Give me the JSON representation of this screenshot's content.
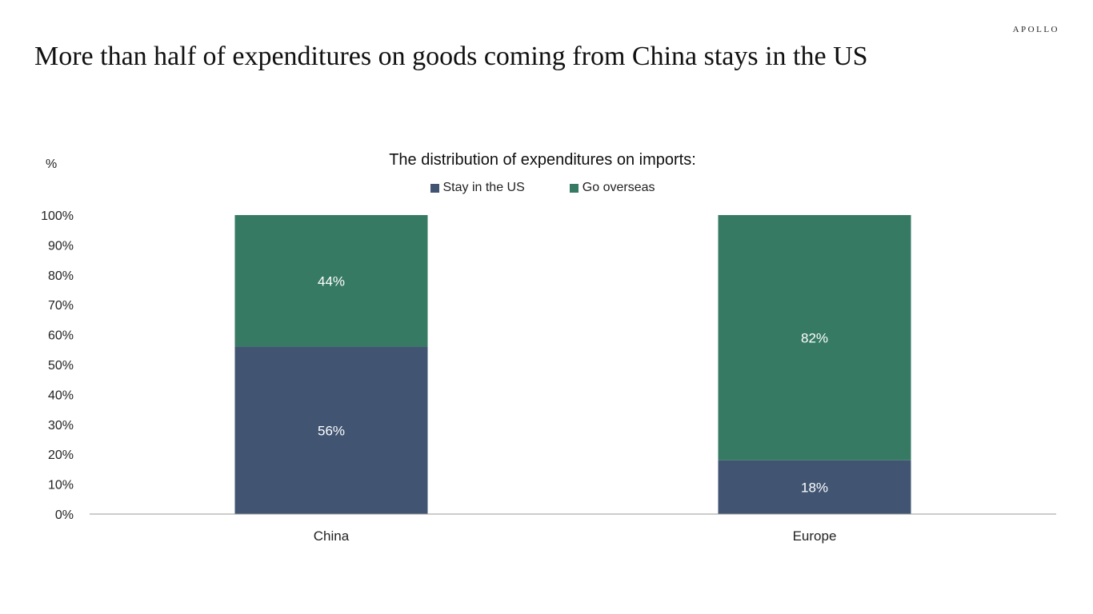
{
  "brand": "APOLLO",
  "page": {
    "title": "More than half of expenditures on goods coming from China stays in the US"
  },
  "chart_data": {
    "type": "bar",
    "stacked": true,
    "title": "The distribution of expenditures on imports:",
    "ylabel": "%",
    "xlabel": "",
    "categories": [
      "China",
      "Europe"
    ],
    "series": [
      {
        "name": "Stay in the US",
        "values": [
          56,
          18
        ],
        "labels": [
          "56%",
          "18%"
        ],
        "color": "#415573"
      },
      {
        "name": "Go overseas",
        "values": [
          44,
          82
        ],
        "labels": [
          "44%",
          "82%"
        ],
        "color": "#377a64"
      }
    ],
    "ylim": [
      0,
      100
    ],
    "yticks": [
      "0%",
      "10%",
      "20%",
      "30%",
      "40%",
      "50%",
      "60%",
      "70%",
      "80%",
      "90%",
      "100%"
    ],
    "legend_position": "top",
    "grid": false
  }
}
